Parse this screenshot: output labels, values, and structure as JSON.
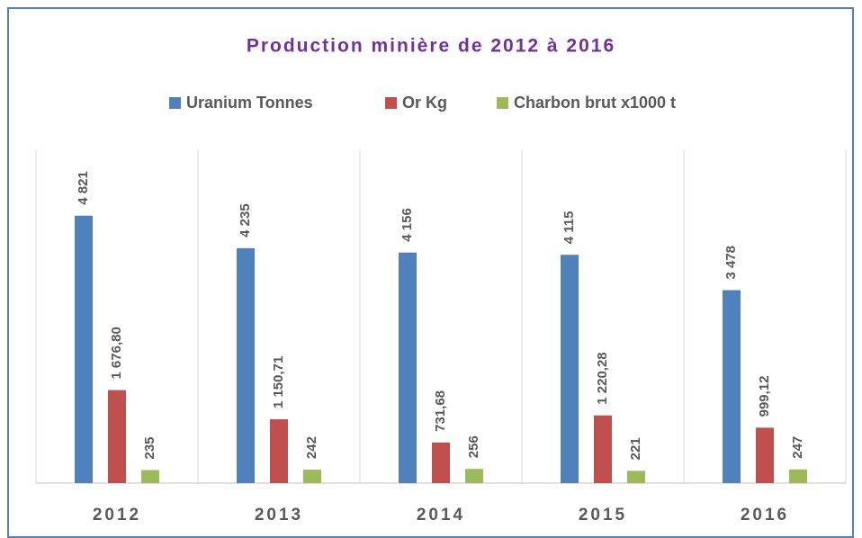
{
  "chart_data": {
    "type": "bar",
    "title": "Production minière de 2012 à 2016",
    "categories": [
      "2012",
      "2013",
      "2014",
      "2015",
      "2016"
    ],
    "series": [
      {
        "name": "Uranium Tonnes",
        "color": "#4f81bd",
        "values": [
          4821,
          4235,
          4156,
          4115,
          3478
        ],
        "value_labels": [
          "4 821",
          "4 235",
          "4 156",
          "4 115",
          "3 478"
        ]
      },
      {
        "name": "Or Kg",
        "color": "#c0504d",
        "values": [
          1676.8,
          1150.71,
          731.68,
          1220.28,
          999.12
        ],
        "value_labels": [
          "1 676,80",
          "1 150,71",
          "731,68",
          "1 220,28",
          "999,12"
        ]
      },
      {
        "name": "Charbon brut x1000 t",
        "color": "#9bbb59",
        "values": [
          235,
          242,
          256,
          221,
          247
        ],
        "value_labels": [
          "235",
          "242",
          "256",
          "221",
          "247"
        ]
      }
    ],
    "ylim": [
      0,
      6000
    ],
    "legend": "top"
  }
}
